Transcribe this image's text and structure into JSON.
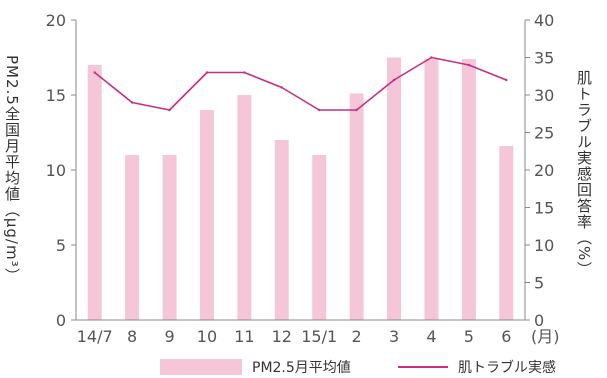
{
  "chart_data": {
    "type": "bar",
    "categories": [
      "14/7",
      "8",
      "9",
      "10",
      "11",
      "12",
      "15/1",
      "2",
      "3",
      "4",
      "5",
      "6"
    ],
    "x_unit_label": "(月)",
    "series": [
      {
        "name": "PM2.5月平均値",
        "type": "bar",
        "axis": "left",
        "color": "#f5c6d8",
        "values": [
          17,
          11,
          11,
          14,
          15,
          12,
          11,
          15.1,
          17.5,
          17.4,
          17.4,
          11.6
        ]
      },
      {
        "name": "肌トラブル実感",
        "type": "line",
        "axis": "right",
        "color": "#c62f84",
        "values": [
          33,
          29,
          28,
          33,
          33,
          31,
          28,
          28,
          32,
          35,
          34,
          32
        ]
      }
    ],
    "ylabel_left": "PM2.5全国月平均値（μg/m³）",
    "ylabel_right": "肌トラブル実感回答率（%）",
    "ylim_left": [
      0,
      20
    ],
    "yticks_left": [
      0,
      5,
      10,
      15,
      20
    ],
    "ylim_right": [
      0,
      40
    ],
    "yticks_right": [
      0,
      5,
      10,
      15,
      20,
      25,
      30,
      35,
      40
    ],
    "grid": false,
    "legend_position": "bottom"
  }
}
